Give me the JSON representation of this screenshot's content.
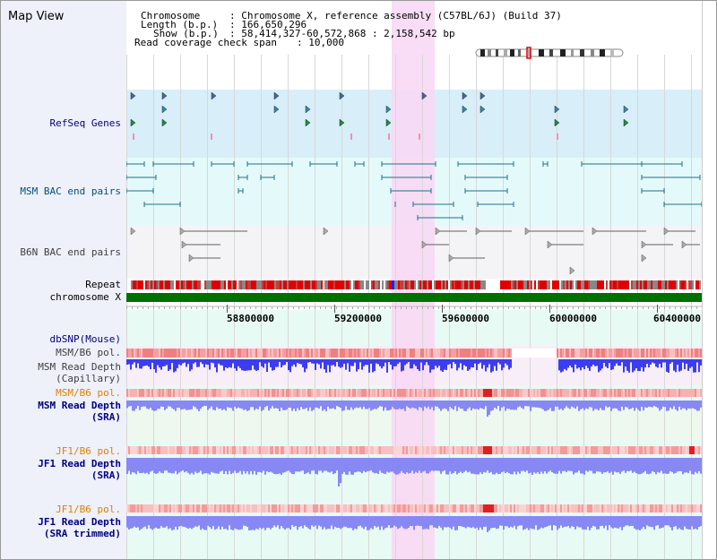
{
  "title": "Map View",
  "header": {
    "chromosome_key": "Chromosome",
    "chromosome_val": ": Chromosome X, reference assembly (C57BL/6J) (Build 37)",
    "length_key": "Length (b.p.)",
    "length_val": ": 166,650,296",
    "show_key": "Show (b.p.)",
    "show_val": ": 58,414,327-60,572,868 : 2,158,542 bp",
    "span_key": "Read coverage check span",
    "span_val": ": 10,000"
  },
  "tracks": {
    "refseq": "RefSeq Genes",
    "msm_bac": "MSM BAC end pairs",
    "b6n_bac": "B6N BAC end pairs",
    "repeat": "Repeat",
    "chrom": "chromosome X",
    "dbsnp": "dbSNP(Mouse)",
    "msm_b6_pol_1": "MSM/B6 pol.",
    "msm_depth_cap_1": "MSM Read Depth",
    "msm_depth_cap_2": "(Capillary)",
    "msm_b6_pol_2": "MSM/B6 pol.",
    "msm_depth_sra_1": "MSM Read Depth",
    "msm_depth_sra_2": "(SRA)",
    "jf1_b6_pol_1": "JF1/B6 pol.",
    "jf1_depth_sra_1": "JF1 Read Depth",
    "jf1_depth_sra_2": "(SRA)",
    "jf1_b6_pol_2": "JF1/B6 pol.",
    "jf1_depth_trim_1": "JF1 Read Depth",
    "jf1_depth_trim_2": "(SRA trimmed)"
  },
  "axis_ticks": [
    "58800000",
    "59200000",
    "59600000",
    "60000000",
    "60400000"
  ],
  "colors": {
    "highlight": "#f8d8f4",
    "refseq_bg": "#d8eef8",
    "msm_bac_bg": "#e4fafa",
    "b6n_bac_bg": "#f4f4f6",
    "chrom_bar": "#007000",
    "depth_blue": "#3c3cf0",
    "depth_light": "#8888f4",
    "label_navy": "#000080",
    "label_orange": "#e08000",
    "label_teal": "#006080"
  }
}
